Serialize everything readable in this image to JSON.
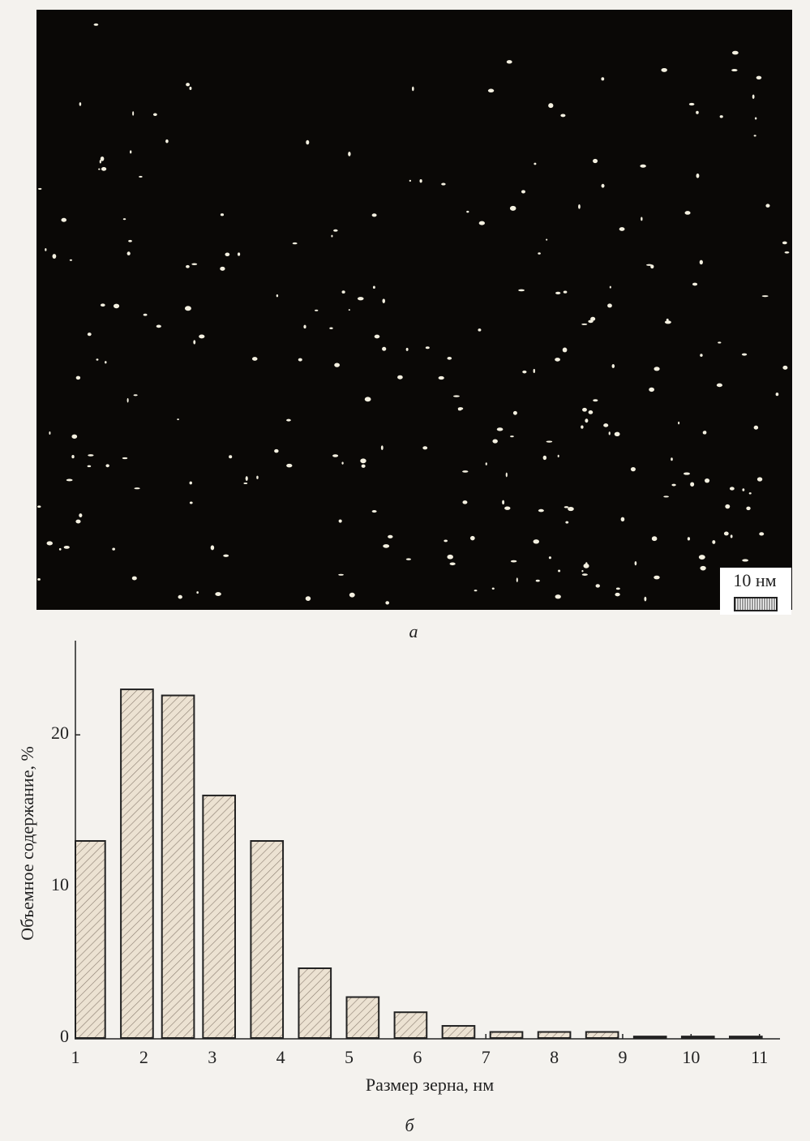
{
  "figure": {
    "scale_label": "10 нм",
    "panel_a": "а",
    "panel_b": "б"
  },
  "chart_data": {
    "type": "bar",
    "x_label": "Размер зерна, нм",
    "y_label": "Объемное содержание, %",
    "x": [
      1.2,
      1.9,
      2.5,
      3.1,
      3.8,
      4.5,
      5.2,
      5.9,
      6.6,
      7.3,
      8.0,
      8.7,
      9.4,
      10.1,
      10.8
    ],
    "values": [
      13,
      23,
      22.6,
      16,
      13,
      4.6,
      2.7,
      1.7,
      0.8,
      0.4,
      0.4,
      0.4,
      0.1,
      0.1,
      0.1
    ],
    "color": "#ece2d2",
    "xlim": [
      1,
      11.3
    ],
    "xticks": [
      1,
      2,
      3,
      4,
      5,
      6,
      7,
      8,
      9,
      10,
      11
    ],
    "ylim": [
      0,
      26
    ],
    "yticks": [
      0,
      10,
      20
    ],
    "grid": false
  }
}
